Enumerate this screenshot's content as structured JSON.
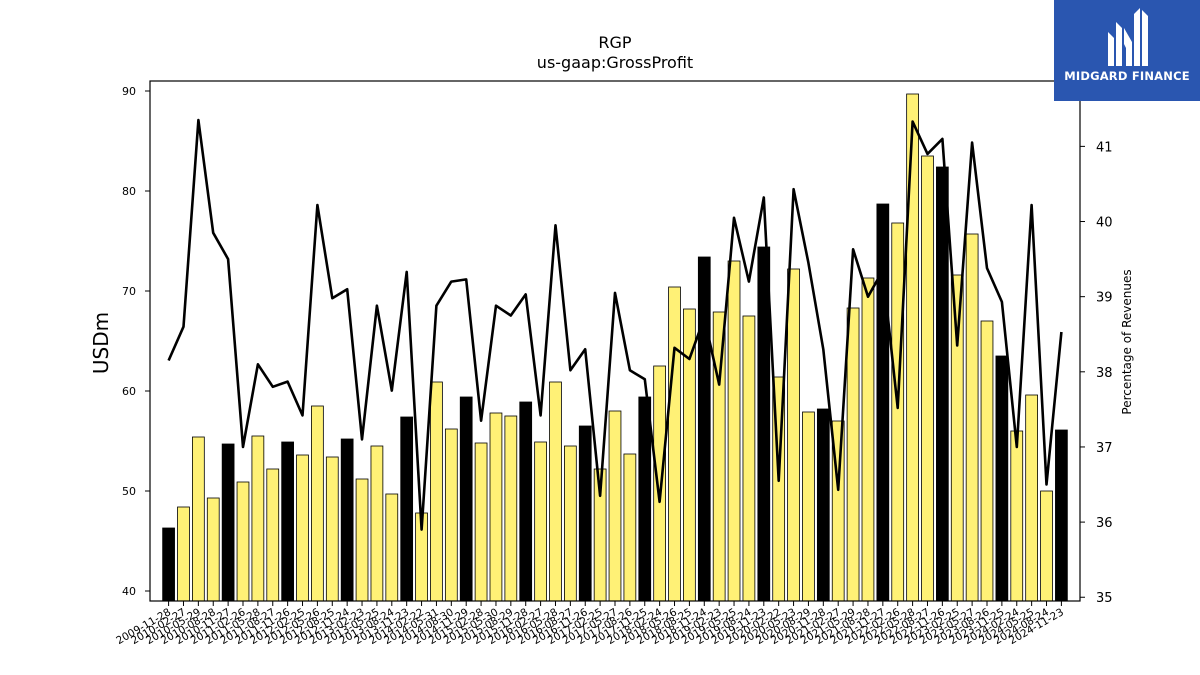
{
  "logo": {
    "text": "MIDGARD FINANCE"
  },
  "chart_data": {
    "type": "bar+line",
    "title": "RGP",
    "subtitle": "us-gaap:GrossProfit",
    "ylabel": "USDm",
    "y2label": "Percentage of Revenues",
    "ylim": [
      39,
      91
    ],
    "y2lim": [
      34.95,
      41.87
    ],
    "yticks": [
      40,
      50,
      60,
      70,
      80,
      90
    ],
    "y2ticks": [
      35,
      36,
      37,
      38,
      39,
      40,
      41
    ],
    "grid": false,
    "colors": {
      "q4_bar": "#000000",
      "quarter_bar": "#fff176",
      "line": "#000000"
    },
    "categories": [
      "2009-11-28",
      "2010-02-27",
      "2010-05-29",
      "2010-08-28",
      "2010-11-27",
      "2011-02-26",
      "2011-05-28",
      "2011-08-27",
      "2011-11-26",
      "2012-02-25",
      "2012-05-26",
      "2012-08-25",
      "2012-11-24",
      "2013-02-23",
      "2013-05-25",
      "2013-08-24",
      "2013-11-23",
      "2014-02-22",
      "2014-05-31",
      "2014-08-30",
      "2014-11-29",
      "2015-02-28",
      "2015-05-30",
      "2015-08-29",
      "2015-11-28",
      "2016-02-27",
      "2016-05-28",
      "2016-08-27",
      "2016-11-26",
      "2017-02-25",
      "2017-05-27",
      "2017-08-26",
      "2017-11-25",
      "2018-02-24",
      "2018-05-26",
      "2018-08-25",
      "2018-11-24",
      "2019-02-23",
      "2019-05-25",
      "2019-08-24",
      "2019-11-23",
      "2020-02-22",
      "2020-05-23",
      "2020-08-29",
      "2020-11-28",
      "2021-02-27",
      "2021-05-29",
      "2021-08-28",
      "2021-11-27",
      "2022-02-26",
      "2022-05-28",
      "2022-08-27",
      "2022-11-26",
      "2023-02-25",
      "2023-05-27",
      "2023-08-26",
      "2023-11-25",
      "2024-02-24",
      "2024-05-25",
      "2024-08-24",
      "2024-11-23"
    ],
    "bar_values": [
      46.3,
      48.4,
      55.4,
      49.3,
      54.7,
      50.9,
      55.5,
      52.2,
      54.9,
      53.6,
      58.5,
      53.4,
      55.2,
      51.2,
      54.5,
      49.7,
      57.4,
      47.8,
      60.9,
      56.2,
      59.4,
      54.8,
      57.8,
      57.5,
      58.9,
      54.9,
      60.9,
      54.5,
      56.5,
      52.2,
      58.0,
      53.7,
      59.4,
      62.5,
      70.4,
      68.2,
      73.4,
      67.9,
      73.0,
      67.5,
      74.4,
      61.4,
      72.2,
      57.9,
      58.2,
      57.0,
      68.3,
      71.3,
      78.7,
      76.8,
      89.7,
      83.5,
      82.4,
      71.6,
      75.7,
      67.0,
      63.5,
      56.0,
      59.6,
      50.0,
      56.1
    ],
    "bar_is_q4": [
      true,
      false,
      false,
      false,
      true,
      false,
      false,
      false,
      true,
      false,
      false,
      false,
      true,
      false,
      false,
      false,
      true,
      false,
      false,
      false,
      true,
      false,
      false,
      false,
      true,
      false,
      false,
      false,
      true,
      false,
      false,
      false,
      true,
      false,
      false,
      false,
      true,
      false,
      false,
      false,
      true,
      false,
      false,
      false,
      true,
      false,
      false,
      false,
      true,
      false,
      false,
      false,
      true,
      false,
      false,
      false,
      true,
      false,
      false,
      false,
      true
    ],
    "line_values": [
      38.15,
      38.6,
      41.35,
      39.85,
      39.5,
      37.0,
      38.1,
      37.8,
      37.87,
      37.42,
      40.22,
      38.98,
      39.1,
      37.1,
      38.88,
      37.75,
      39.33,
      35.9,
      38.88,
      39.2,
      39.23,
      37.35,
      38.88,
      38.75,
      39.03,
      37.42,
      39.95,
      38.02,
      38.3,
      36.35,
      39.05,
      38.02,
      37.9,
      36.27,
      38.32,
      38.17,
      38.72,
      37.83,
      40.05,
      39.2,
      40.32,
      36.55,
      40.43,
      39.45,
      38.3,
      36.43,
      39.63,
      39.0,
      39.35,
      37.52,
      41.33,
      40.9,
      41.1,
      38.35,
      41.05,
      39.38,
      38.93,
      37.0,
      40.22,
      36.5,
      38.53
    ]
  }
}
